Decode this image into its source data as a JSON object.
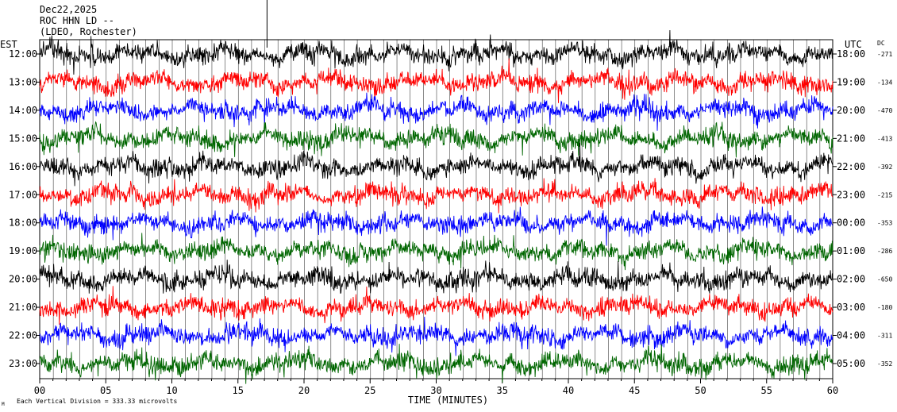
{
  "header": {
    "date": "Dec22,2025",
    "station": "ROC HHN LD --",
    "location": "(LDEO, Rochester)"
  },
  "footer": {
    "scale_label": "Each Vertical Division =  333.33 microvolts",
    "corner_mark": "M"
  },
  "colors": {
    "trace_palette": [
      "#000000",
      "#ff0000",
      "#0000ff",
      "#006600"
    ],
    "background": "#ffffff",
    "grid": "#000000"
  },
  "chart_data": {
    "type": "line",
    "title": "",
    "xlabel": "TIME (MINUTES)",
    "left_axis_label": "EST",
    "right_axis_label": "UTC",
    "dc_label": "DC",
    "xlim": [
      0,
      60
    ],
    "x_ticks": [
      "00",
      "05",
      "10",
      "15",
      "20",
      "25",
      "30",
      "35",
      "40",
      "45",
      "50",
      "55",
      "60"
    ],
    "grid": true,
    "rows": [
      {
        "est": "12:00",
        "utc": "18:00",
        "dc": "-271",
        "color": "#000000"
      },
      {
        "est": "13:00",
        "utc": "19:00",
        "dc": "-134",
        "color": "#ff0000"
      },
      {
        "est": "14:00",
        "utc": "20:00",
        "dc": "-470",
        "color": "#0000ff"
      },
      {
        "est": "15:00",
        "utc": "21:00",
        "dc": "-413",
        "color": "#006600"
      },
      {
        "est": "16:00",
        "utc": "22:00",
        "dc": "-392",
        "color": "#000000"
      },
      {
        "est": "17:00",
        "utc": "23:00",
        "dc": "-215",
        "color": "#ff0000"
      },
      {
        "est": "18:00",
        "utc": "00:00",
        "dc": "-353",
        "color": "#0000ff"
      },
      {
        "est": "19:00",
        "utc": "01:00",
        "dc": "-286",
        "color": "#006600"
      },
      {
        "est": "20:00",
        "utc": "02:00",
        "dc": "-650",
        "color": "#000000"
      },
      {
        "est": "21:00",
        "utc": "03:00",
        "dc": "-180",
        "color": "#ff0000"
      },
      {
        "est": "22:00",
        "utc": "04:00",
        "dc": "-311",
        "color": "#0000ff"
      },
      {
        "est": "23:00",
        "utc": "05:00",
        "dc": "-352",
        "color": "#006600"
      }
    ]
  }
}
